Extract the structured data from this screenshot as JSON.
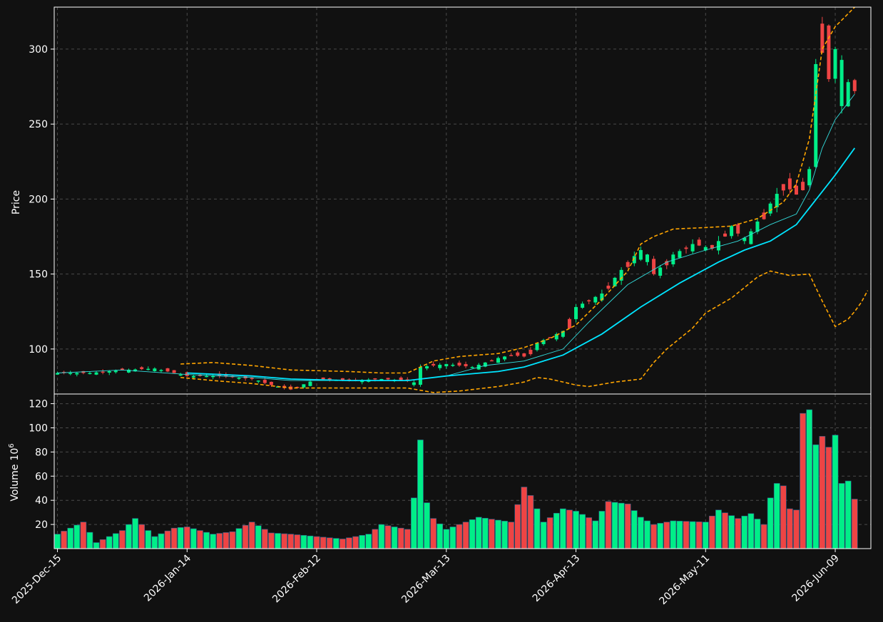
{
  "chart_data": {
    "type": "candlestick",
    "colors": {
      "background": "#111111",
      "up": "#00ee88",
      "down": "#ee4444",
      "ma_fast": "#33dddd",
      "ma_slow": "#00e5ff",
      "bollinger": "#ffa500",
      "grid": "#4a4a4a",
      "text": "#ffffff"
    },
    "price_panel": {
      "ylabel": "Price",
      "ylim": [
        70,
        328
      ],
      "yticks": [
        100,
        150,
        200,
        250,
        300
      ]
    },
    "volume_panel": {
      "ylabel": "Volume",
      "ylabel_exp": "10",
      "ylabel_sup": "6",
      "ylim": [
        0,
        128
      ],
      "yticks": [
        20,
        40,
        60,
        80,
        100,
        120
      ]
    },
    "x_tick_labels": [
      {
        "i": 0,
        "label": "2025-Dec-15"
      },
      {
        "i": 20,
        "label": "2026-Jan-14"
      },
      {
        "i": 40,
        "label": "2026-Feb-12"
      },
      {
        "i": 60,
        "label": "2026-Mar-13"
      },
      {
        "i": 80,
        "label": "2026-Apr-13"
      },
      {
        "i": 100,
        "label": "2026-May-11"
      },
      {
        "i": 120,
        "label": "2026-Jun-09"
      }
    ],
    "anchors": {
      "close": [
        [
          0,
          84
        ],
        [
          5,
          84
        ],
        [
          10,
          86
        ],
        [
          15,
          87
        ],
        [
          20,
          82
        ],
        [
          25,
          82
        ],
        [
          30,
          80
        ],
        [
          33,
          76
        ],
        [
          36,
          73
        ],
        [
          40,
          80
        ],
        [
          45,
          79
        ],
        [
          50,
          80
        ],
        [
          54,
          79
        ],
        [
          55,
          76
        ],
        [
          56,
          88
        ],
        [
          60,
          90
        ],
        [
          64,
          88
        ],
        [
          68,
          94
        ],
        [
          70,
          96
        ],
        [
          72,
          95
        ],
        [
          74,
          104
        ],
        [
          76,
          108
        ],
        [
          78,
          112
        ],
        [
          80,
          128
        ],
        [
          84,
          137
        ],
        [
          88,
          158
        ],
        [
          90,
          166
        ],
        [
          92,
          150
        ],
        [
          95,
          163
        ],
        [
          98,
          170
        ],
        [
          101,
          167
        ],
        [
          104,
          182
        ],
        [
          106,
          172
        ],
        [
          108,
          185
        ],
        [
          110,
          197
        ],
        [
          112,
          210
        ],
        [
          114,
          203
        ],
        [
          116,
          220
        ],
        [
          117,
          290
        ],
        [
          118,
          317
        ],
        [
          119,
          280
        ],
        [
          120,
          300
        ],
        [
          121,
          262
        ],
        [
          122,
          278
        ],
        [
          123,
          272
        ]
      ],
      "volume": [
        [
          0,
          12
        ],
        [
          4,
          22
        ],
        [
          6,
          5
        ],
        [
          10,
          15
        ],
        [
          12,
          25
        ],
        [
          15,
          10
        ],
        [
          18,
          17
        ],
        [
          20,
          18
        ],
        [
          24,
          12
        ],
        [
          27,
          14
        ],
        [
          30,
          22
        ],
        [
          33,
          13
        ],
        [
          36,
          12
        ],
        [
          40,
          10
        ],
        [
          44,
          8
        ],
        [
          48,
          12
        ],
        [
          50,
          20
        ],
        [
          54,
          16
        ],
        [
          55,
          42
        ],
        [
          56,
          90
        ],
        [
          57,
          38
        ],
        [
          58,
          25
        ],
        [
          60,
          16
        ],
        [
          65,
          26
        ],
        [
          70,
          22
        ],
        [
          72,
          51
        ],
        [
          73,
          44
        ],
        [
          75,
          22
        ],
        [
          78,
          33
        ],
        [
          80,
          31
        ],
        [
          83,
          23
        ],
        [
          85,
          39
        ],
        [
          88,
          37
        ],
        [
          90,
          26
        ],
        [
          92,
          20
        ],
        [
          95,
          23
        ],
        [
          100,
          22
        ],
        [
          102,
          32
        ],
        [
          105,
          25
        ],
        [
          107,
          29
        ],
        [
          109,
          20
        ],
        [
          110,
          42
        ],
        [
          111,
          54
        ],
        [
          112,
          52
        ],
        [
          113,
          33
        ],
        [
          114,
          32
        ],
        [
          115,
          112
        ],
        [
          116,
          115
        ],
        [
          117,
          86
        ],
        [
          118,
          93
        ],
        [
          119,
          84
        ],
        [
          120,
          94
        ],
        [
          121,
          54
        ],
        [
          122,
          56
        ],
        [
          123,
          41
        ]
      ],
      "ma_fast": [
        [
          0,
          84
        ],
        [
          10,
          86
        ],
        [
          20,
          83
        ],
        [
          30,
          81
        ],
        [
          36,
          79
        ],
        [
          45,
          79
        ],
        [
          54,
          79
        ],
        [
          60,
          82
        ],
        [
          66,
          89
        ],
        [
          72,
          92
        ],
        [
          78,
          100
        ],
        [
          82,
          118
        ],
        [
          88,
          143
        ],
        [
          94,
          158
        ],
        [
          100,
          166
        ],
        [
          105,
          172
        ],
        [
          110,
          183
        ],
        [
          114,
          190
        ],
        [
          116,
          206
        ],
        [
          118,
          234
        ],
        [
          120,
          253
        ],
        [
          123,
          270
        ]
      ],
      "ma_slow": [
        [
          20,
          84
        ],
        [
          30,
          82
        ],
        [
          36,
          80
        ],
        [
          45,
          79
        ],
        [
          54,
          79
        ],
        [
          60,
          82
        ],
        [
          68,
          85
        ],
        [
          72,
          88
        ],
        [
          78,
          96
        ],
        [
          84,
          110
        ],
        [
          90,
          128
        ],
        [
          96,
          144
        ],
        [
          102,
          158
        ],
        [
          106,
          166
        ],
        [
          110,
          172
        ],
        [
          114,
          183
        ],
        [
          118,
          205
        ],
        [
          120,
          216
        ],
        [
          123,
          234
        ]
      ],
      "bb_upper": [
        [
          19,
          90
        ],
        [
          24,
          91
        ],
        [
          30,
          89
        ],
        [
          36,
          86
        ],
        [
          45,
          85
        ],
        [
          50,
          84
        ],
        [
          54,
          84
        ],
        [
          58,
          92
        ],
        [
          62,
          95
        ],
        [
          68,
          97
        ],
        [
          72,
          101
        ],
        [
          76,
          107
        ],
        [
          80,
          116
        ],
        [
          84,
          133
        ],
        [
          88,
          152
        ],
        [
          90,
          170
        ],
        [
          92,
          175
        ],
        [
          95,
          180
        ],
        [
          100,
          181
        ],
        [
          104,
          182
        ],
        [
          108,
          187
        ],
        [
          112,
          198
        ],
        [
          114,
          210
        ],
        [
          116,
          240
        ],
        [
          118,
          300
        ],
        [
          120,
          315
        ],
        [
          123,
          328
        ]
      ],
      "bb_lower": [
        [
          19,
          81
        ],
        [
          24,
          79
        ],
        [
          30,
          77
        ],
        [
          36,
          74
        ],
        [
          45,
          74
        ],
        [
          50,
          74
        ],
        [
          54,
          74
        ],
        [
          58,
          71
        ],
        [
          62,
          72
        ],
        [
          68,
          75
        ],
        [
          72,
          78
        ],
        [
          74,
          81
        ],
        [
          76,
          80
        ],
        [
          80,
          76
        ],
        [
          82,
          75
        ],
        [
          86,
          78
        ],
        [
          90,
          80
        ],
        [
          92,
          91
        ],
        [
          94,
          100
        ],
        [
          98,
          114
        ],
        [
          100,
          124
        ],
        [
          104,
          134
        ],
        [
          108,
          148
        ],
        [
          110,
          152
        ],
        [
          113,
          149
        ],
        [
          116,
          150
        ],
        [
          118,
          132
        ],
        [
          120,
          115
        ],
        [
          122,
          120
        ],
        [
          123,
          125
        ],
        [
          124,
          131
        ],
        [
          125,
          139
        ]
      ]
    }
  }
}
